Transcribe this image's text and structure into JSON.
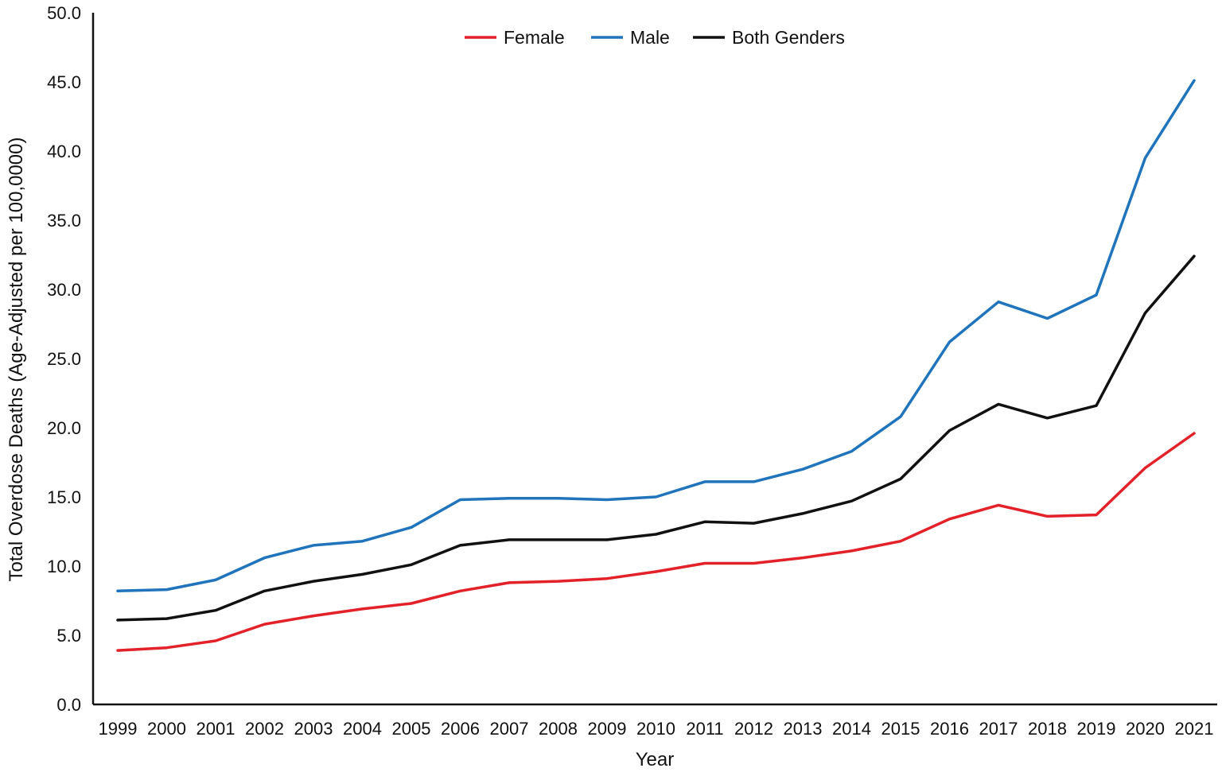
{
  "chart_data": {
    "type": "line",
    "title": "",
    "xlabel": "Year",
    "ylabel": "Total Overdose Deaths (Age-Adjusted per 100,0000)",
    "ylim": [
      0,
      50
    ],
    "yticks": [
      "0.0",
      "5.0",
      "10.0",
      "15.0",
      "20.0",
      "25.0",
      "30.0",
      "35.0",
      "40.0",
      "45.0",
      "50.0"
    ],
    "grid": false,
    "legend_position": "top-center",
    "x": [
      "1999",
      "2000",
      "2001",
      "2002",
      "2003",
      "2004",
      "2005",
      "2006",
      "2007",
      "2008",
      "2009",
      "2010",
      "2011",
      "2012",
      "2013",
      "2014",
      "2015",
      "2016",
      "2017",
      "2018",
      "2019",
      "2020",
      "2021"
    ],
    "series": [
      {
        "name": "Female",
        "color": "#e32128",
        "values": [
          3.9,
          4.1,
          4.6,
          5.8,
          6.4,
          6.9,
          7.3,
          8.2,
          8.8,
          8.9,
          9.1,
          9.6,
          10.2,
          10.2,
          10.6,
          11.1,
          11.8,
          13.4,
          14.4,
          13.6,
          13.7,
          17.1,
          19.6
        ]
      },
      {
        "name": "Male",
        "color": "#1f74bb",
        "values": [
          8.2,
          8.3,
          9.0,
          10.6,
          11.5,
          11.8,
          12.8,
          14.8,
          14.9,
          14.9,
          14.8,
          15.0,
          16.1,
          16.1,
          17.0,
          18.3,
          20.8,
          26.2,
          29.1,
          27.9,
          29.6,
          39.5,
          45.1
        ]
      },
      {
        "name": "Both Genders",
        "color": "#111111",
        "values": [
          6.1,
          6.2,
          6.8,
          8.2,
          8.9,
          9.4,
          10.1,
          11.5,
          11.9,
          11.9,
          11.9,
          12.3,
          13.2,
          13.1,
          13.8,
          14.7,
          16.3,
          19.8,
          21.7,
          20.7,
          21.6,
          28.3,
          32.4
        ]
      }
    ]
  }
}
